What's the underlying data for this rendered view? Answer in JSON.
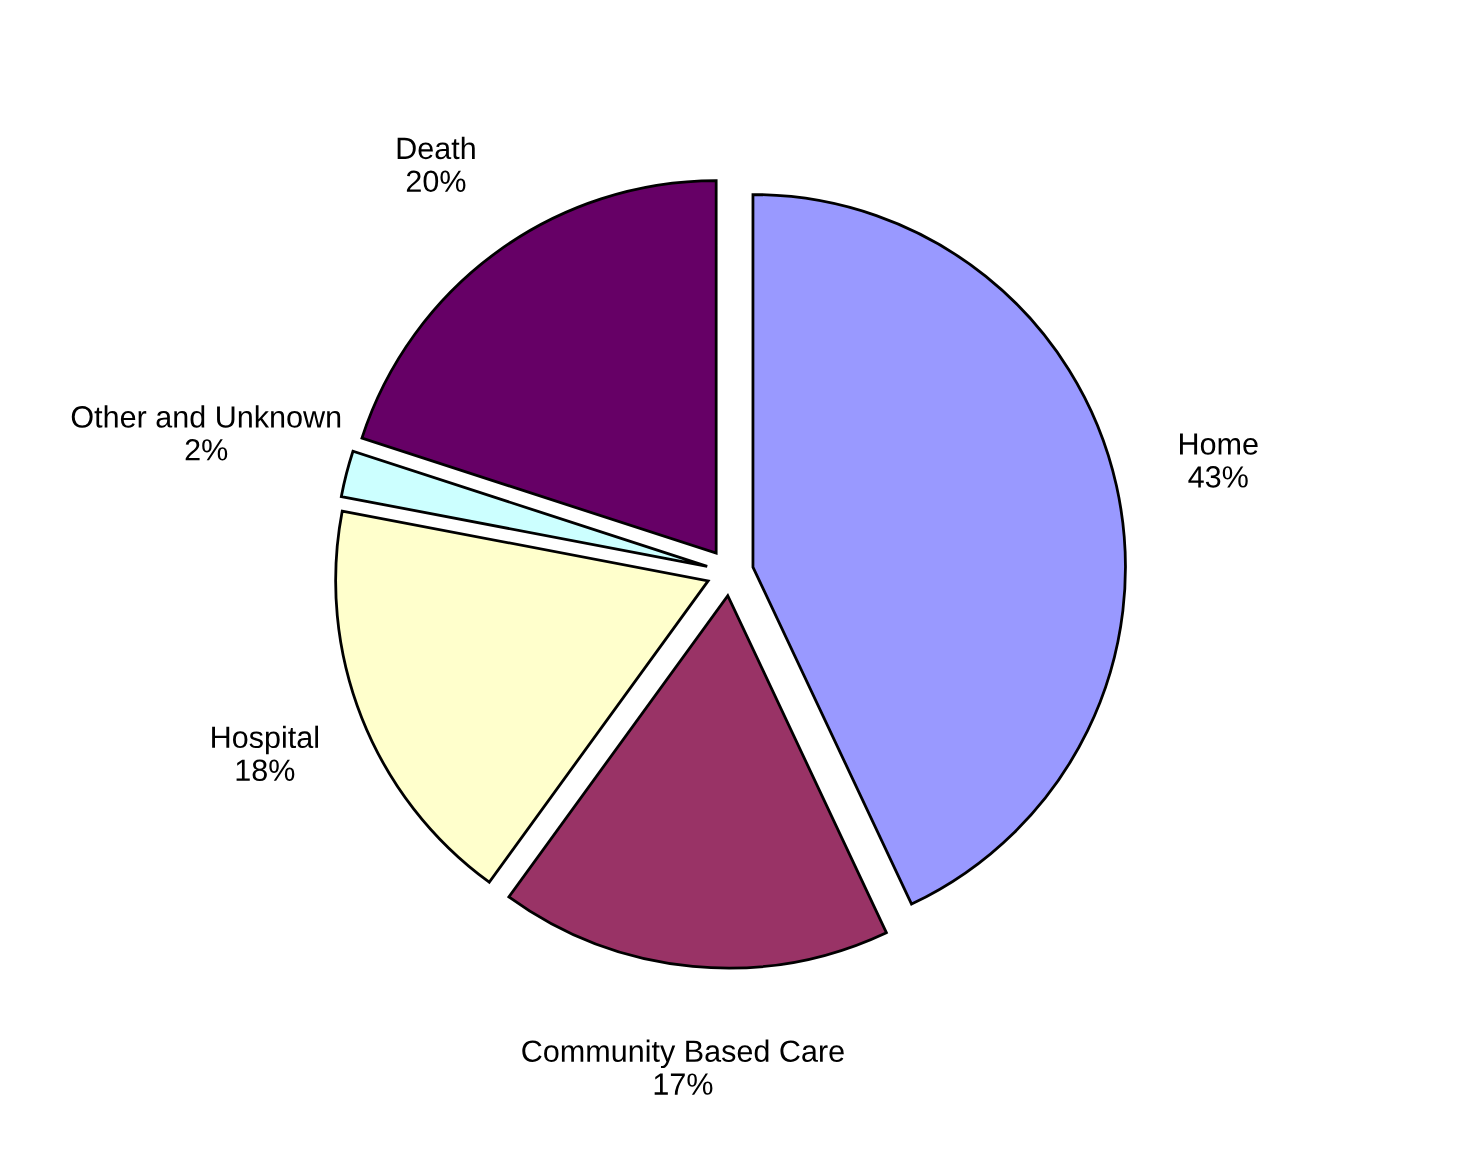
{
  "chart_data": {
    "type": "pie",
    "categories": [
      "Home",
      "Community Based Care",
      "Hospital",
      "Other and Unknown",
      "Death"
    ],
    "values": [
      43,
      17,
      18,
      2,
      20
    ],
    "value_labels": [
      "43%",
      "17%",
      "18%",
      "2%",
      "20%"
    ],
    "colors": [
      "#9999ff",
      "#993366",
      "#ffffcc",
      "#ccffff",
      "#660066"
    ],
    "legend": false
  }
}
